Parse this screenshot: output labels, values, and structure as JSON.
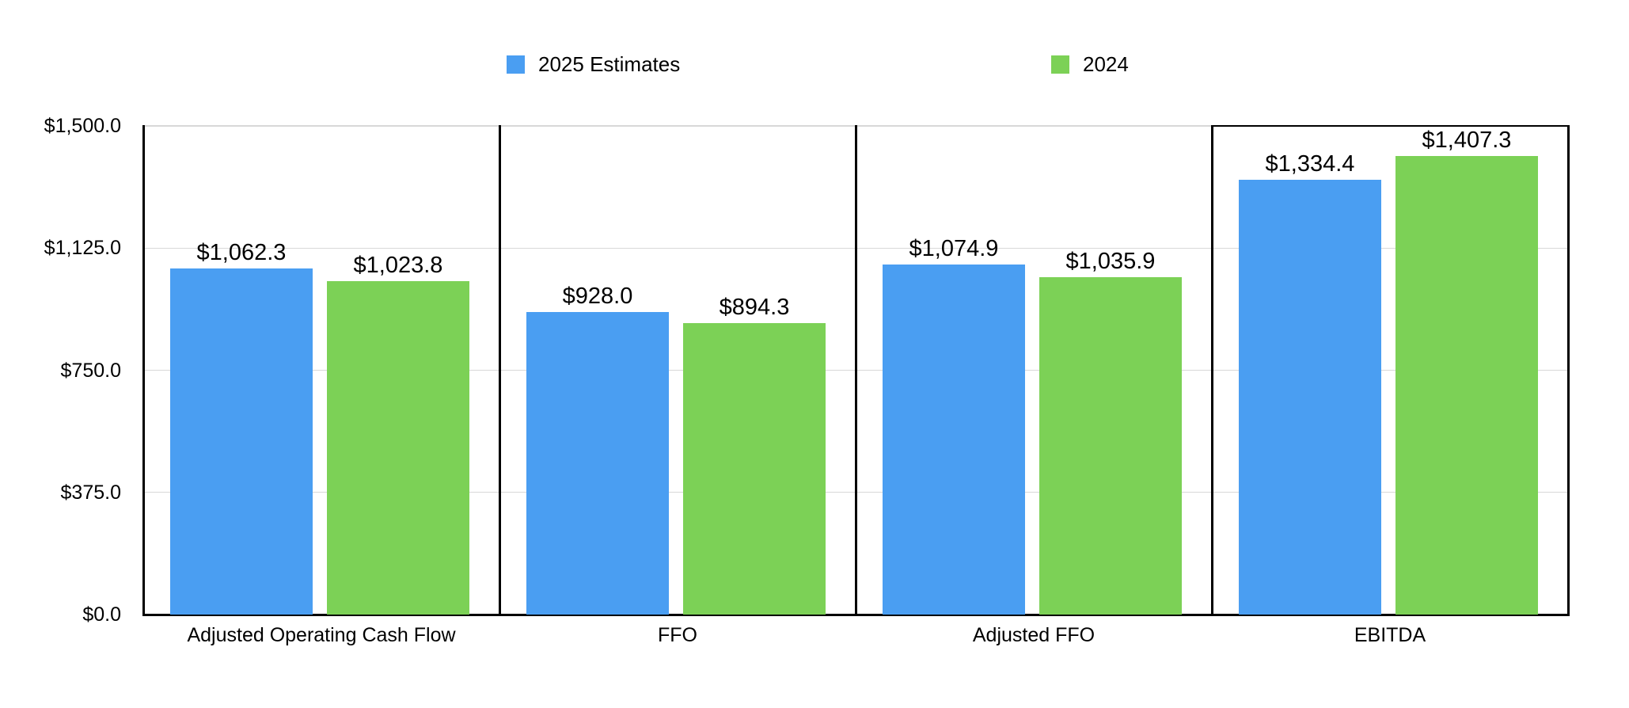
{
  "chart_data": {
    "type": "bar",
    "title": "",
    "categories": [
      "Adjusted Operating Cash Flow",
      "FFO",
      "Adjusted FFO",
      "EBITDA"
    ],
    "series": [
      {
        "name": "2025 Estimates",
        "color": "#4A9EF2",
        "values": [
          1062.3,
          928.0,
          1074.9,
          1334.4
        ],
        "value_labels": [
          "$1,062.3",
          "$928.0",
          "$1,074.9",
          "$1,334.4"
        ]
      },
      {
        "name": "2024",
        "color": "#7CD156",
        "values": [
          1023.8,
          894.3,
          1035.9,
          1407.3
        ],
        "value_labels": [
          "$1,023.8",
          "$894.3",
          "$1,035.9",
          "$1,407.3"
        ]
      }
    ],
    "ylim": [
      0,
      1500
    ],
    "yticks": [
      0,
      375,
      750,
      1125,
      1500
    ],
    "ytick_labels": [
      "$0.0",
      "$375.0",
      "$750.0",
      "$1,125.0",
      "$1,500.0"
    ],
    "grid": true,
    "legend_position": "top",
    "panel_separators": true
  },
  "style": {
    "background": "#FFFFFF",
    "axis_color": "#000000",
    "gridline_color": "#D8D8D8",
    "text_color": "#000000"
  }
}
